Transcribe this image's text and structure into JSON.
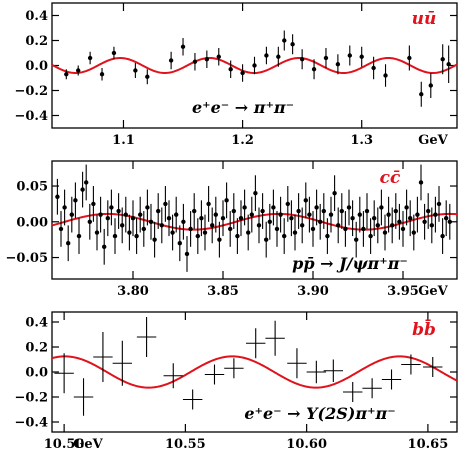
{
  "chart_data": [
    {
      "type": "scatter",
      "quark_label": "uū",
      "process_label": "e⁺e⁻ → π⁺π⁻",
      "xlim": [
        1.04,
        1.38
      ],
      "ylim": [
        -0.5,
        0.5
      ],
      "x_ticks": [
        1.1,
        1.2,
        1.3
      ],
      "x_tick_labels": [
        "1.1",
        "1.2",
        "1.3"
      ],
      "y_ticks": [
        -0.4,
        -0.2,
        0.0,
        0.2,
        0.4
      ],
      "y_tick_labels": [
        "−0.4",
        "−0.2",
        "0.0",
        "0.2",
        "0.4"
      ],
      "unit_label": "GeV",
      "fit": {
        "amplitude": 0.06,
        "period": 0.075,
        "phase": 1.0785
      },
      "points": [
        {
          "x": 1.052,
          "y": -0.07,
          "err": 0.04
        },
        {
          "x": 1.062,
          "y": -0.04,
          "err": 0.04
        },
        {
          "x": 1.072,
          "y": 0.06,
          "err": 0.05
        },
        {
          "x": 1.082,
          "y": -0.07,
          "err": 0.05
        },
        {
          "x": 1.092,
          "y": 0.1,
          "err": 0.05
        },
        {
          "x": 1.11,
          "y": -0.04,
          "err": 0.06
        },
        {
          "x": 1.12,
          "y": -0.09,
          "err": 0.06
        },
        {
          "x": 1.14,
          "y": 0.04,
          "err": 0.07
        },
        {
          "x": 1.15,
          "y": 0.15,
          "err": 0.07
        },
        {
          "x": 1.16,
          "y": 0.03,
          "err": 0.07
        },
        {
          "x": 1.17,
          "y": 0.05,
          "err": 0.07
        },
        {
          "x": 1.18,
          "y": 0.07,
          "err": 0.07
        },
        {
          "x": 1.19,
          "y": -0.03,
          "err": 0.07
        },
        {
          "x": 1.2,
          "y": -0.06,
          "err": 0.07
        },
        {
          "x": 1.21,
          "y": 0.0,
          "err": 0.07
        },
        {
          "x": 1.22,
          "y": 0.08,
          "err": 0.07
        },
        {
          "x": 1.23,
          "y": 0.07,
          "err": 0.08
        },
        {
          "x": 1.235,
          "y": 0.2,
          "err": 0.08
        },
        {
          "x": 1.242,
          "y": 0.17,
          "err": 0.08
        },
        {
          "x": 1.25,
          "y": 0.05,
          "err": 0.08
        },
        {
          "x": 1.26,
          "y": -0.03,
          "err": 0.08
        },
        {
          "x": 1.27,
          "y": 0.06,
          "err": 0.08
        },
        {
          "x": 1.28,
          "y": 0.01,
          "err": 0.08
        },
        {
          "x": 1.29,
          "y": 0.08,
          "err": 0.08
        },
        {
          "x": 1.3,
          "y": 0.07,
          "err": 0.08
        },
        {
          "x": 1.31,
          "y": -0.02,
          "err": 0.09
        },
        {
          "x": 1.32,
          "y": -0.08,
          "err": 0.09
        },
        {
          "x": 1.34,
          "y": 0.06,
          "err": 0.1
        },
        {
          "x": 1.35,
          "y": -0.23,
          "err": 0.1
        },
        {
          "x": 1.358,
          "y": -0.16,
          "err": 0.1
        },
        {
          "x": 1.368,
          "y": 0.05,
          "err": 0.12
        },
        {
          "x": 1.373,
          "y": 0.01,
          "err": 0.15
        }
      ]
    },
    {
      "type": "scatter",
      "quark_label": "cc̄",
      "process_label": "pp̄ → J/ψπ⁺π⁻",
      "xlim": [
        3.755,
        3.98
      ],
      "ylim": [
        -0.08,
        0.085
      ],
      "x_ticks": [
        3.8,
        3.85,
        3.9,
        3.95
      ],
      "x_tick_labels": [
        "3.80",
        "3.85",
        "3.90",
        "3.95"
      ],
      "y_ticks": [
        -0.05,
        0.0,
        0.05
      ],
      "y_tick_labels": [
        "−0.05",
        "0.00",
        "0.05"
      ],
      "unit_label": "GeV",
      "fit": {
        "amplitude": 0.011,
        "period": 0.095,
        "phase": 3.7622
      },
      "points": [
        {
          "x": 3.758,
          "y": 0.035,
          "err": 0.025
        },
        {
          "x": 3.76,
          "y": -0.01,
          "err": 0.025
        },
        {
          "x": 3.762,
          "y": 0.02,
          "err": 0.025
        },
        {
          "x": 3.764,
          "y": -0.03,
          "err": 0.025
        },
        {
          "x": 3.766,
          "y": 0.01,
          "err": 0.025
        },
        {
          "x": 3.768,
          "y": 0.03,
          "err": 0.025
        },
        {
          "x": 3.77,
          "y": -0.02,
          "err": 0.025
        },
        {
          "x": 3.772,
          "y": 0.045,
          "err": 0.025
        },
        {
          "x": 3.774,
          "y": 0.055,
          "err": 0.025
        },
        {
          "x": 3.776,
          "y": 0.0,
          "err": 0.025
        },
        {
          "x": 3.778,
          "y": 0.025,
          "err": 0.025
        },
        {
          "x": 3.78,
          "y": -0.015,
          "err": 0.025
        },
        {
          "x": 3.782,
          "y": 0.01,
          "err": 0.025
        },
        {
          "x": 3.784,
          "y": -0.035,
          "err": 0.025
        },
        {
          "x": 3.786,
          "y": 0.005,
          "err": 0.025
        },
        {
          "x": 3.788,
          "y": 0.02,
          "err": 0.025
        },
        {
          "x": 3.79,
          "y": -0.02,
          "err": 0.025
        },
        {
          "x": 3.792,
          "y": 0.015,
          "err": 0.025
        },
        {
          "x": 3.794,
          "y": -0.005,
          "err": 0.025
        },
        {
          "x": 3.796,
          "y": 0.01,
          "err": 0.025
        },
        {
          "x": 3.798,
          "y": -0.015,
          "err": 0.025
        },
        {
          "x": 3.8,
          "y": 0.005,
          "err": 0.025
        },
        {
          "x": 3.802,
          "y": -0.02,
          "err": 0.025
        },
        {
          "x": 3.804,
          "y": 0.01,
          "err": 0.025
        },
        {
          "x": 3.806,
          "y": -0.01,
          "err": 0.025
        },
        {
          "x": 3.808,
          "y": 0.02,
          "err": 0.025
        },
        {
          "x": 3.81,
          "y": 0.0,
          "err": 0.025
        },
        {
          "x": 3.812,
          "y": -0.025,
          "err": 0.025
        },
        {
          "x": 3.814,
          "y": 0.015,
          "err": 0.025
        },
        {
          "x": 3.816,
          "y": -0.005,
          "err": 0.025
        },
        {
          "x": 3.818,
          "y": 0.025,
          "err": 0.025
        },
        {
          "x": 3.82,
          "y": 0.005,
          "err": 0.025
        },
        {
          "x": 3.822,
          "y": -0.015,
          "err": 0.025
        },
        {
          "x": 3.824,
          "y": 0.01,
          "err": 0.025
        },
        {
          "x": 3.826,
          "y": -0.03,
          "err": 0.025
        },
        {
          "x": 3.828,
          "y": 0.0,
          "err": 0.025
        },
        {
          "x": 3.83,
          "y": -0.045,
          "err": 0.025
        },
        {
          "x": 3.832,
          "y": -0.01,
          "err": 0.025
        },
        {
          "x": 3.834,
          "y": 0.015,
          "err": 0.025
        },
        {
          "x": 3.836,
          "y": -0.02,
          "err": 0.025
        },
        {
          "x": 3.838,
          "y": 0.005,
          "err": 0.025
        },
        {
          "x": 3.84,
          "y": -0.015,
          "err": 0.025
        },
        {
          "x": 3.842,
          "y": 0.025,
          "err": 0.025
        },
        {
          "x": 3.844,
          "y": -0.005,
          "err": 0.025
        },
        {
          "x": 3.846,
          "y": 0.01,
          "err": 0.025
        },
        {
          "x": 3.848,
          "y": -0.025,
          "err": 0.025
        },
        {
          "x": 3.85,
          "y": 0.005,
          "err": 0.025
        },
        {
          "x": 3.852,
          "y": 0.03,
          "err": 0.025
        },
        {
          "x": 3.854,
          "y": -0.01,
          "err": 0.025
        },
        {
          "x": 3.856,
          "y": 0.015,
          "err": 0.025
        },
        {
          "x": 3.858,
          "y": -0.02,
          "err": 0.025
        },
        {
          "x": 3.86,
          "y": 0.005,
          "err": 0.025
        },
        {
          "x": 3.862,
          "y": 0.02,
          "err": 0.025
        },
        {
          "x": 3.864,
          "y": -0.015,
          "err": 0.025
        },
        {
          "x": 3.866,
          "y": 0.01,
          "err": 0.025
        },
        {
          "x": 3.868,
          "y": 0.04,
          "err": 0.025
        },
        {
          "x": 3.87,
          "y": -0.005,
          "err": 0.025
        },
        {
          "x": 3.872,
          "y": 0.015,
          "err": 0.025
        },
        {
          "x": 3.874,
          "y": -0.025,
          "err": 0.025
        },
        {
          "x": 3.876,
          "y": 0.0,
          "err": 0.025
        },
        {
          "x": 3.878,
          "y": 0.02,
          "err": 0.025
        },
        {
          "x": 3.88,
          "y": -0.01,
          "err": 0.025
        },
        {
          "x": 3.882,
          "y": 0.01,
          "err": 0.025
        },
        {
          "x": 3.884,
          "y": -0.02,
          "err": 0.025
        },
        {
          "x": 3.886,
          "y": 0.025,
          "err": 0.025
        },
        {
          "x": 3.888,
          "y": 0.005,
          "err": 0.025
        },
        {
          "x": 3.89,
          "y": -0.015,
          "err": 0.025
        },
        {
          "x": 3.892,
          "y": 0.015,
          "err": 0.025
        },
        {
          "x": 3.894,
          "y": -0.005,
          "err": 0.025
        },
        {
          "x": 3.896,
          "y": 0.03,
          "err": 0.025
        },
        {
          "x": 3.898,
          "y": 0.01,
          "err": 0.025
        },
        {
          "x": 3.9,
          "y": -0.01,
          "err": 0.025
        },
        {
          "x": 3.902,
          "y": 0.02,
          "err": 0.025
        },
        {
          "x": 3.904,
          "y": 0.0,
          "err": 0.025
        },
        {
          "x": 3.906,
          "y": 0.015,
          "err": 0.025
        },
        {
          "x": 3.908,
          "y": -0.02,
          "err": 0.025
        },
        {
          "x": 3.91,
          "y": 0.01,
          "err": 0.025
        },
        {
          "x": 3.912,
          "y": 0.04,
          "err": 0.025
        },
        {
          "x": 3.914,
          "y": -0.005,
          "err": 0.025
        },
        {
          "x": 3.916,
          "y": 0.015,
          "err": 0.025
        },
        {
          "x": 3.918,
          "y": -0.01,
          "err": 0.025
        },
        {
          "x": 3.92,
          "y": 0.02,
          "err": 0.025
        },
        {
          "x": 3.922,
          "y": 0.005,
          "err": 0.025
        },
        {
          "x": 3.924,
          "y": -0.025,
          "err": 0.025
        },
        {
          "x": 3.926,
          "y": 0.01,
          "err": 0.025
        },
        {
          "x": 3.928,
          "y": -0.01,
          "err": 0.025
        },
        {
          "x": 3.93,
          "y": 0.015,
          "err": 0.025
        },
        {
          "x": 3.932,
          "y": -0.02,
          "err": 0.025
        },
        {
          "x": 3.934,
          "y": 0.005,
          "err": 0.025
        },
        {
          "x": 3.936,
          "y": -0.005,
          "err": 0.025
        },
        {
          "x": 3.938,
          "y": 0.02,
          "err": 0.025
        },
        {
          "x": 3.94,
          "y": -0.015,
          "err": 0.025
        },
        {
          "x": 3.942,
          "y": 0.01,
          "err": 0.025
        },
        {
          "x": 3.944,
          "y": -0.005,
          "err": 0.025
        },
        {
          "x": 3.946,
          "y": 0.015,
          "err": 0.025
        },
        {
          "x": 3.948,
          "y": 0.0,
          "err": 0.025
        },
        {
          "x": 3.95,
          "y": -0.01,
          "err": 0.025
        },
        {
          "x": 3.952,
          "y": 0.02,
          "err": 0.025
        },
        {
          "x": 3.954,
          "y": 0.005,
          "err": 0.025
        },
        {
          "x": 3.956,
          "y": -0.015,
          "err": 0.025
        },
        {
          "x": 3.958,
          "y": 0.01,
          "err": 0.025
        },
        {
          "x": 3.96,
          "y": 0.055,
          "err": 0.025
        },
        {
          "x": 3.962,
          "y": 0.0,
          "err": 0.025
        },
        {
          "x": 3.964,
          "y": 0.015,
          "err": 0.025
        },
        {
          "x": 3.966,
          "y": -0.005,
          "err": 0.025
        },
        {
          "x": 3.968,
          "y": 0.01,
          "err": 0.025
        },
        {
          "x": 3.97,
          "y": 0.025,
          "err": 0.025
        },
        {
          "x": 3.972,
          "y": -0.02,
          "err": 0.025
        },
        {
          "x": 3.974,
          "y": 0.005,
          "err": 0.025
        },
        {
          "x": 3.976,
          "y": 0.0,
          "err": 0.025
        }
      ]
    },
    {
      "type": "scatter",
      "quark_label": "bb̄",
      "process_label": "e⁺e⁻ → Υ(2S)π⁺π⁻",
      "xlim": [
        10.495,
        10.662
      ],
      "ylim": [
        -0.48,
        0.48
      ],
      "x_ticks": [
        10.5,
        10.55,
        10.6,
        10.65
      ],
      "x_tick_labels": [
        "10.50",
        "10.55",
        "10.60",
        "10.65"
      ],
      "y_ticks": [
        -0.4,
        -0.2,
        0.0,
        0.2,
        0.4
      ],
      "y_tick_labels": [
        "−0.4",
        "−0.2",
        "0.0",
        "0.2",
        "0.4"
      ],
      "unit_label": "GeV",
      "fit": {
        "amplitude": 0.125,
        "period": 0.069,
        "phase": 10.4831
      },
      "points": [
        {
          "x": 10.5,
          "y": -0.01,
          "xerr": 0.004,
          "err": 0.16
        },
        {
          "x": 10.508,
          "y": -0.2,
          "xerr": 0.004,
          "err": 0.15
        },
        {
          "x": 10.516,
          "y": 0.12,
          "xerr": 0.004,
          "err": 0.2
        },
        {
          "x": 10.524,
          "y": 0.07,
          "xerr": 0.004,
          "err": 0.18
        },
        {
          "x": 10.534,
          "y": 0.28,
          "xerr": 0.004,
          "err": 0.16
        },
        {
          "x": 10.545,
          "y": -0.03,
          "xerr": 0.004,
          "err": 0.1
        },
        {
          "x": 10.553,
          "y": -0.22,
          "xerr": 0.004,
          "err": 0.08
        },
        {
          "x": 10.562,
          "y": -0.02,
          "xerr": 0.004,
          "err": 0.08
        },
        {
          "x": 10.57,
          "y": 0.03,
          "xerr": 0.004,
          "err": 0.08
        },
        {
          "x": 10.579,
          "y": 0.23,
          "xerr": 0.004,
          "err": 0.12
        },
        {
          "x": 10.587,
          "y": 0.27,
          "xerr": 0.004,
          "err": 0.14
        },
        {
          "x": 10.596,
          "y": 0.07,
          "xerr": 0.004,
          "err": 0.12
        },
        {
          "x": 10.604,
          "y": 0.0,
          "xerr": 0.004,
          "err": 0.09
        },
        {
          "x": 10.611,
          "y": 0.01,
          "xerr": 0.004,
          "err": 0.09
        },
        {
          "x": 10.619,
          "y": -0.16,
          "xerr": 0.004,
          "err": 0.08
        },
        {
          "x": 10.627,
          "y": -0.13,
          "xerr": 0.004,
          "err": 0.08
        },
        {
          "x": 10.635,
          "y": -0.06,
          "xerr": 0.004,
          "err": 0.08
        },
        {
          "x": 10.643,
          "y": 0.06,
          "xerr": 0.004,
          "err": 0.08
        },
        {
          "x": 10.652,
          "y": 0.04,
          "xerr": 0.004,
          "err": 0.08
        }
      ]
    }
  ]
}
